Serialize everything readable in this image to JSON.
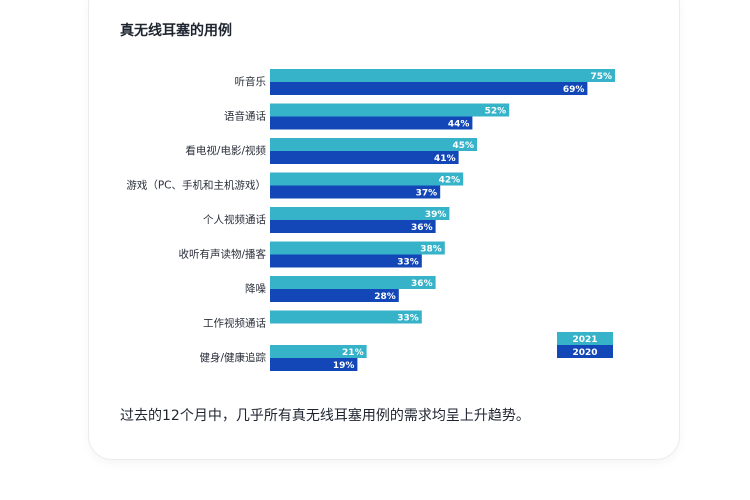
{
  "title": "真无线耳塞的用例",
  "caption": "过去的12个月中，几乎所有真无线耳塞用例的需求均呈上升趋势。",
  "colors": {
    "series_2021": "#36b3c9",
    "series_2020": "#1347b7"
  },
  "chart_data": {
    "type": "bar",
    "orientation": "horizontal",
    "title": "真无线耳塞的用例",
    "categories": [
      "听音乐",
      "语音通话",
      "看电视/电影/视频",
      "游戏（PC、手机和主机游戏）",
      "个人视频通话",
      "收听有声读物/播客",
      "降噪",
      "工作视频通话",
      "健身/健康追踪"
    ],
    "series": [
      {
        "name": "2021",
        "values": [
          75,
          52,
          45,
          42,
          39,
          38,
          36,
          33,
          21
        ]
      },
      {
        "name": "2020",
        "values": [
          69,
          44,
          41,
          37,
          36,
          33,
          28,
          null,
          19
        ]
      }
    ],
    "value_suffix": "%",
    "legend_position": "bottom-right",
    "grid": false
  }
}
